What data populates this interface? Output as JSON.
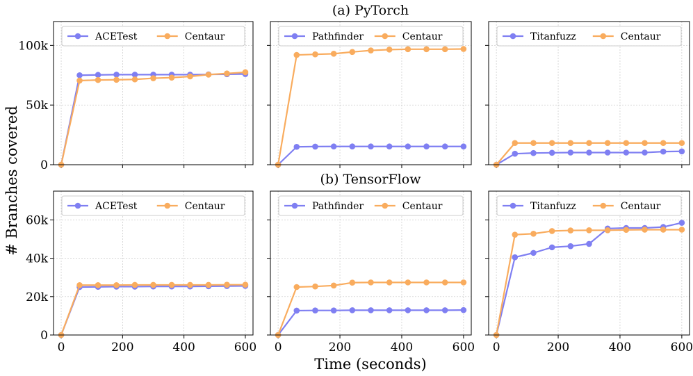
{
  "colors": {
    "baseline": "#7f7ff2",
    "centaur": "#f9ac5e"
  },
  "chart_data": {
    "type": "line",
    "xlabel": "Time (seconds)",
    "ylabel": "# Branches covered",
    "x": [
      0,
      60,
      120,
      180,
      240,
      300,
      360,
      420,
      480,
      540,
      600
    ],
    "xlim": [
      -25,
      625
    ],
    "xticks": [
      "0",
      "200",
      "400",
      "600"
    ],
    "rows": [
      {
        "title": "(a) PyTorch",
        "ylim": [
          0,
          120000
        ],
        "yticks": [
          {
            "value": 0,
            "label": "0"
          },
          {
            "value": 50000,
            "label": "50k"
          },
          {
            "value": 100000,
            "label": "100k"
          }
        ],
        "panels": [
          {
            "series": [
              {
                "name": "ACETest",
                "values": [
                  0,
                  75000,
                  75300,
                  75500,
                  75500,
                  75500,
                  75500,
                  75500,
                  75700,
                  75800,
                  76000
                ]
              },
              {
                "name": "Centaur",
                "values": [
                  0,
                  70500,
                  71000,
                  71200,
                  71500,
                  72500,
                  73000,
                  74000,
                  75500,
                  76500,
                  77500
                ]
              }
            ]
          },
          {
            "series": [
              {
                "name": "Pathfinder",
                "values": [
                  0,
                  15000,
                  15200,
                  15300,
                  15300,
                  15300,
                  15300,
                  15300,
                  15300,
                  15300,
                  15300
                ]
              },
              {
                "name": "Centaur",
                "values": [
                  0,
                  92000,
                  92500,
                  93000,
                  94500,
                  95800,
                  96500,
                  96800,
                  96800,
                  96800,
                  97000
                ]
              }
            ]
          },
          {
            "series": [
              {
                "name": "Titanfuzz",
                "values": [
                  0,
                  9200,
                  9800,
                  10000,
                  10200,
                  10200,
                  10200,
                  10200,
                  10200,
                  11000,
                  11200
                ]
              },
              {
                "name": "Centaur",
                "values": [
                  0,
                  18200,
                  18200,
                  18200,
                  18200,
                  18200,
                  18200,
                  18200,
                  18200,
                  18200,
                  18200
                ]
              }
            ]
          }
        ]
      },
      {
        "title": "(b) TensorFlow",
        "ylim": [
          0,
          75000
        ],
        "yticks": [
          {
            "value": 0,
            "label": "0"
          },
          {
            "value": 20000,
            "label": "20k"
          },
          {
            "value": 40000,
            "label": "40k"
          },
          {
            "value": 60000,
            "label": "60k"
          }
        ],
        "panels": [
          {
            "series": [
              {
                "name": "ACETest",
                "values": [
                  0,
                  25000,
                  25100,
                  25200,
                  25200,
                  25300,
                  25300,
                  25300,
                  25400,
                  25500,
                  25600
                ]
              },
              {
                "name": "Centaur",
                "values": [
                  0,
                  26000,
                  26000,
                  26000,
                  26100,
                  26100,
                  26100,
                  26100,
                  26100,
                  26200,
                  26200
                ]
              }
            ]
          },
          {
            "series": [
              {
                "name": "Pathfinder",
                "values": [
                  0,
                  12700,
                  12800,
                  12800,
                  12900,
                  12900,
                  12900,
                  12900,
                  12900,
                  12900,
                  13000
                ]
              },
              {
                "name": "Centaur",
                "values": [
                  0,
                  25000,
                  25300,
                  25800,
                  27300,
                  27400,
                  27400,
                  27400,
                  27400,
                  27400,
                  27400
                ]
              }
            ]
          },
          {
            "series": [
              {
                "name": "Titanfuzz",
                "values": [
                  0,
                  40500,
                  42800,
                  45700,
                  46300,
                  47500,
                  55500,
                  55800,
                  55800,
                  56300,
                  58500
                ]
              },
              {
                "name": "Centaur",
                "values": [
                  0,
                  52300,
                  52800,
                  54200,
                  54500,
                  54600,
                  54600,
                  54800,
                  54900,
                  54900,
                  54900
                ]
              }
            ]
          }
        ]
      }
    ]
  }
}
